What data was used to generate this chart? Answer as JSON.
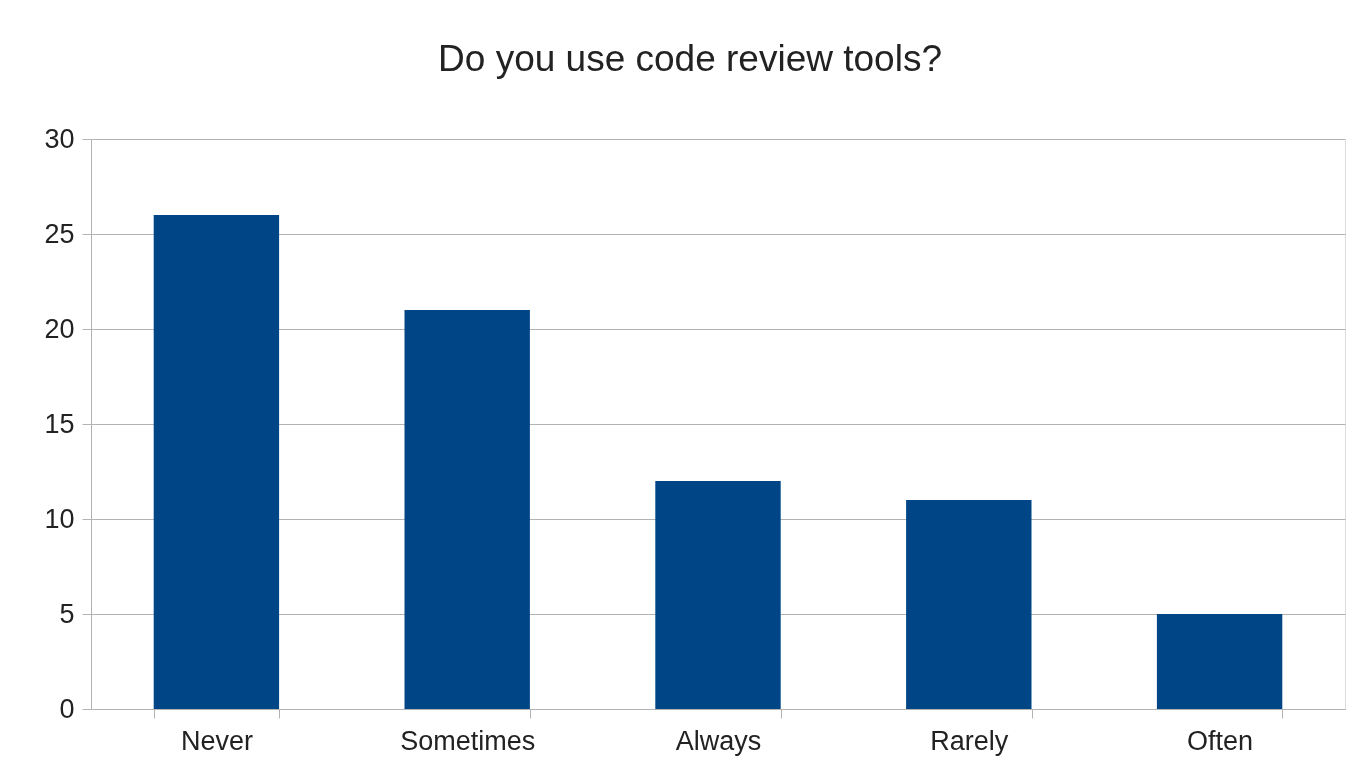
{
  "chart_data": {
    "type": "bar",
    "title": "Do you use code review tools?",
    "categories": [
      "Never",
      "Sometimes",
      "Always",
      "Rarely",
      "Often"
    ],
    "values": [
      26,
      21,
      12,
      11,
      5
    ],
    "color": "#004586",
    "ylim": [
      0,
      30
    ],
    "yticks": [
      0,
      5,
      10,
      15,
      20,
      25,
      30
    ],
    "grid": "y"
  }
}
